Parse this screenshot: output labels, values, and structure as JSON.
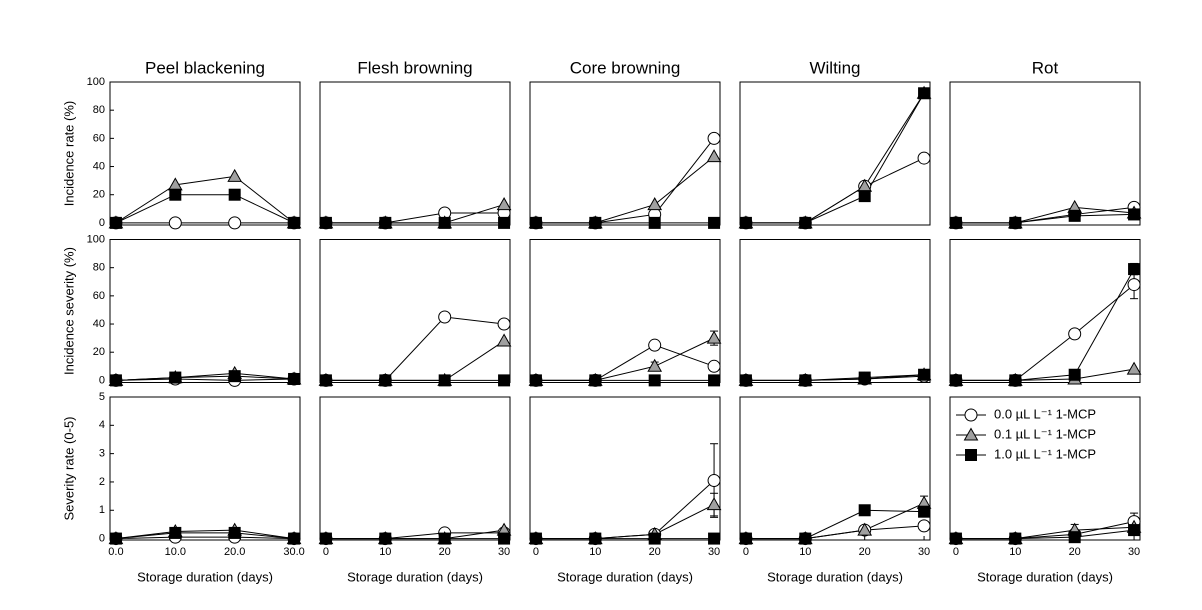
{
  "chart_data": [
    {
      "type": "line",
      "title": "Peel blackening",
      "ylabel": "Incidence rate (%)",
      "x": [
        0,
        10,
        20,
        30
      ],
      "xlim": [
        -1,
        31
      ],
      "ylim": [
        -1.5,
        100
      ],
      "yticks": [
        0,
        20,
        40,
        60,
        80,
        100
      ],
      "series": [
        {
          "color": "#ffffff",
          "marker": "circle",
          "values": [
            0,
            0,
            0,
            0
          ]
        },
        {
          "color": "#a0a0a0",
          "marker": "triangle",
          "values": [
            0,
            27,
            33,
            0
          ]
        },
        {
          "color": "#000000",
          "marker": "square",
          "values": [
            0,
            20,
            20,
            0
          ]
        }
      ]
    },
    {
      "type": "line",
      "title": "Flesh browning",
      "x": [
        0,
        10,
        20,
        30
      ],
      "xlim": [
        -1,
        31
      ],
      "ylim": [
        -1.5,
        100
      ],
      "series": [
        {
          "color": "#ffffff",
          "marker": "circle",
          "values": [
            0,
            0,
            7,
            7
          ]
        },
        {
          "color": "#a0a0a0",
          "marker": "triangle",
          "values": [
            0,
            0,
            0,
            13
          ]
        },
        {
          "color": "#000000",
          "marker": "square",
          "values": [
            0,
            0,
            0,
            0
          ]
        }
      ]
    },
    {
      "type": "line",
      "title": "Core browning",
      "x": [
        0,
        10,
        20,
        30
      ],
      "xlim": [
        -1,
        31
      ],
      "ylim": [
        -1.5,
        100
      ],
      "series": [
        {
          "color": "#ffffff",
          "marker": "circle",
          "values": [
            0,
            0,
            6,
            60
          ]
        },
        {
          "color": "#a0a0a0",
          "marker": "triangle",
          "values": [
            0,
            0,
            13,
            47
          ]
        },
        {
          "color": "#000000",
          "marker": "square",
          "values": [
            0,
            0,
            0,
            0
          ]
        }
      ]
    },
    {
      "type": "line",
      "title": "Wilting",
      "x": [
        0,
        10,
        20,
        30
      ],
      "xlim": [
        -1,
        31
      ],
      "ylim": [
        -1.5,
        100
      ],
      "series": [
        {
          "color": "#ffffff",
          "marker": "circle",
          "values": [
            0,
            0,
            26,
            46
          ]
        },
        {
          "color": "#a0a0a0",
          "marker": "triangle",
          "values": [
            0,
            0,
            26,
            92
          ]
        },
        {
          "color": "#000000",
          "marker": "square",
          "values": [
            0,
            0,
            19,
            92
          ]
        }
      ]
    },
    {
      "type": "line",
      "title": "Rot",
      "x": [
        0,
        10,
        20,
        30
      ],
      "xlim": [
        -1,
        31
      ],
      "ylim": [
        -1.5,
        100
      ],
      "series": [
        {
          "color": "#ffffff",
          "marker": "circle",
          "values": [
            0,
            0,
            6,
            11
          ]
        },
        {
          "color": "#a0a0a0",
          "marker": "triangle",
          "values": [
            0,
            0,
            11,
            7
          ]
        },
        {
          "color": "#000000",
          "marker": "square",
          "values": [
            0,
            0,
            5,
            6
          ]
        }
      ]
    },
    {
      "type": "line",
      "ylabel": "Incidence severity (%)",
      "x": [
        0,
        10,
        20,
        30
      ],
      "xlim": [
        -1,
        31
      ],
      "ylim": [
        -1.5,
        100
      ],
      "yticks": [
        0,
        20,
        40,
        60,
        80,
        100
      ],
      "series": [
        {
          "color": "#ffffff",
          "marker": "circle",
          "values": [
            0,
            1,
            0,
            1
          ]
        },
        {
          "color": "#a0a0a0",
          "marker": "triangle",
          "values": [
            0,
            2,
            5,
            1
          ]
        },
        {
          "color": "#000000",
          "marker": "square",
          "values": [
            0,
            2,
            3,
            1
          ]
        }
      ]
    },
    {
      "type": "line",
      "x": [
        0,
        10,
        20,
        30
      ],
      "xlim": [
        -1,
        31
      ],
      "ylim": [
        -1.5,
        100
      ],
      "series": [
        {
          "color": "#ffffff",
          "marker": "circle",
          "values": [
            0,
            0,
            45,
            40
          ]
        },
        {
          "color": "#a0a0a0",
          "marker": "triangle",
          "values": [
            0,
            0,
            0,
            28
          ]
        },
        {
          "color": "#000000",
          "marker": "square",
          "values": [
            0,
            0,
            0,
            0
          ]
        }
      ]
    },
    {
      "type": "line",
      "x": [
        0,
        10,
        20,
        30
      ],
      "xlim": [
        -1,
        31
      ],
      "ylim": [
        -1.5,
        100
      ],
      "series": [
        {
          "color": "#ffffff",
          "marker": "circle",
          "values": [
            0,
            0,
            25,
            10
          ]
        },
        {
          "color": "#a0a0a0",
          "marker": "triangle",
          "values": [
            0,
            0,
            10,
            30
          ],
          "errors": [
            null,
            null,
            3,
            5
          ]
        },
        {
          "color": "#000000",
          "marker": "square",
          "values": [
            0,
            0,
            0,
            0
          ]
        }
      ]
    },
    {
      "type": "line",
      "x": [
        0,
        10,
        20,
        30
      ],
      "xlim": [
        -1,
        31
      ],
      "ylim": [
        -1.5,
        100
      ],
      "series": [
        {
          "color": "#ffffff",
          "marker": "circle",
          "values": [
            0,
            0,
            1,
            3
          ]
        },
        {
          "color": "#a0a0a0",
          "marker": "triangle",
          "values": [
            0,
            0,
            1,
            4
          ]
        },
        {
          "color": "#000000",
          "marker": "square",
          "values": [
            0,
            0,
            2,
            4
          ]
        }
      ]
    },
    {
      "type": "line",
      "x": [
        0,
        10,
        20,
        30
      ],
      "xlim": [
        -1,
        31
      ],
      "ylim": [
        -1.5,
        100
      ],
      "series": [
        {
          "color": "#ffffff",
          "marker": "circle",
          "values": [
            0,
            0,
            33,
            68
          ],
          "errors": [
            null,
            null,
            null,
            10
          ]
        },
        {
          "color": "#a0a0a0",
          "marker": "triangle",
          "values": [
            0,
            0,
            1,
            8
          ]
        },
        {
          "color": "#000000",
          "marker": "square",
          "values": [
            0,
            0,
            4,
            79
          ],
          "errors": [
            null,
            null,
            null,
            4
          ]
        }
      ]
    },
    {
      "type": "line",
      "ylabel": "Severity rate (0-5)",
      "xlabel": "Storage duration (days)",
      "x": [
        0,
        10,
        20,
        30
      ],
      "xlim": [
        -1,
        31
      ],
      "ylim": [
        -0.05,
        5
      ],
      "yticks": [
        0,
        1,
        2,
        3,
        4,
        5
      ],
      "xticks": [
        {
          "value": 0,
          "label": "0.0"
        },
        {
          "value": 10,
          "label": "10.0"
        },
        {
          "value": 20,
          "label": "20.0"
        },
        {
          "value": 30,
          "label": "30.0"
        }
      ],
      "series": [
        {
          "color": "#ffffff",
          "marker": "circle",
          "values": [
            0,
            0.05,
            0.05,
            0
          ]
        },
        {
          "color": "#a0a0a0",
          "marker": "triangle",
          "values": [
            0,
            0.25,
            0.3,
            0
          ]
        },
        {
          "color": "#000000",
          "marker": "square",
          "values": [
            0,
            0.2,
            0.2,
            0
          ]
        }
      ]
    },
    {
      "type": "line",
      "xlabel": "Storage duration (days)",
      "x": [
        0,
        10,
        20,
        30
      ],
      "xlim": [
        -1,
        31
      ],
      "ylim": [
        -0.05,
        5
      ],
      "xticks": [
        0,
        10,
        20,
        30
      ],
      "series": [
        {
          "color": "#ffffff",
          "marker": "circle",
          "values": [
            0,
            0,
            0.2,
            0.2
          ]
        },
        {
          "color": "#a0a0a0",
          "marker": "triangle",
          "values": [
            0,
            0,
            0,
            0.3
          ]
        },
        {
          "color": "#000000",
          "marker": "square",
          "values": [
            0,
            0,
            0,
            0
          ]
        }
      ]
    },
    {
      "type": "line",
      "xlabel": "Storage duration (days)",
      "x": [
        0,
        10,
        20,
        30
      ],
      "xlim": [
        -1,
        31
      ],
      "ylim": [
        -0.05,
        5
      ],
      "xticks": [
        0,
        10,
        20,
        30
      ],
      "series": [
        {
          "color": "#ffffff",
          "marker": "circle",
          "values": [
            0,
            0,
            0.15,
            2.05
          ],
          "errors": [
            null,
            null,
            null,
            1.3
          ]
        },
        {
          "color": "#a0a0a0",
          "marker": "triangle",
          "values": [
            0,
            0,
            0.15,
            1.2
          ],
          "errors": [
            null,
            null,
            null,
            0.4
          ]
        },
        {
          "color": "#000000",
          "marker": "square",
          "values": [
            0,
            0,
            0,
            0
          ]
        }
      ]
    },
    {
      "type": "line",
      "xlabel": "Storage duration (days)",
      "x": [
        0,
        10,
        20,
        30
      ],
      "xlim": [
        -1,
        31
      ],
      "ylim": [
        -0.05,
        5
      ],
      "xticks": [
        0,
        10,
        20,
        30
      ],
      "series": [
        {
          "color": "#ffffff",
          "marker": "circle",
          "values": [
            0,
            0,
            0.3,
            0.45
          ]
        },
        {
          "color": "#a0a0a0",
          "marker": "triangle",
          "values": [
            0,
            0,
            0.3,
            1.25
          ],
          "errors": [
            null,
            null,
            null,
            0.25
          ]
        },
        {
          "color": "#000000",
          "marker": "square",
          "values": [
            0,
            0,
            1.0,
            0.95
          ]
        }
      ]
    },
    {
      "type": "line",
      "xlabel": "Storage duration (days)",
      "x": [
        0,
        10,
        20,
        30
      ],
      "xlim": [
        -1,
        31
      ],
      "ylim": [
        -0.05,
        5
      ],
      "xticks": [
        0,
        10,
        20,
        30
      ],
      "legend": "upper left",
      "series": [
        {
          "name": "0.0 µL L⁻¹ 1-MCP",
          "color": "#ffffff",
          "marker": "circle",
          "values": [
            0,
            0,
            0.15,
            0.6
          ],
          "errors": [
            null,
            null,
            null,
            0.3
          ]
        },
        {
          "name": "0.1 µL L⁻¹ 1-MCP",
          "color": "#a0a0a0",
          "marker": "triangle",
          "values": [
            0,
            0,
            0.3,
            0.4
          ],
          "errors": [
            null,
            null,
            0.2,
            null
          ]
        },
        {
          "name": "1.0 µL L⁻¹ 1-MCP",
          "color": "#000000",
          "marker": "square",
          "values": [
            0,
            0,
            0.05,
            0.3
          ]
        }
      ]
    }
  ]
}
